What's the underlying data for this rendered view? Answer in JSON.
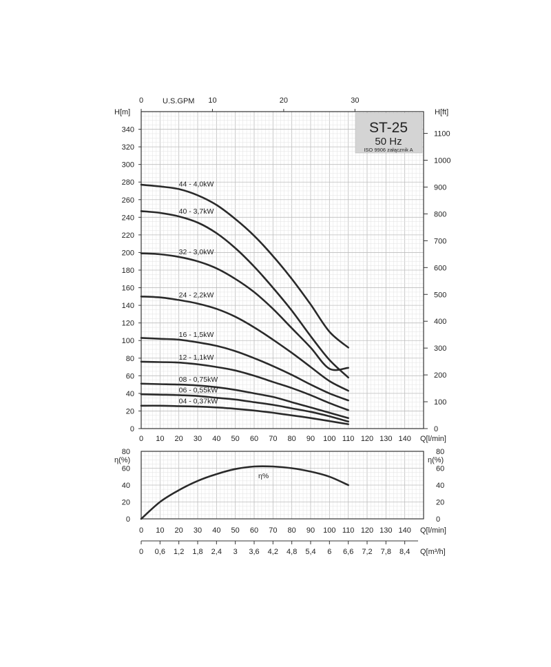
{
  "chart_data": [
    {
      "type": "line",
      "title": "ST-25",
      "subtitle": "50 Hz",
      "note": "ISO 9906 załącznik A",
      "ylabel": "H[m]",
      "ylabel_right": "H[ft]",
      "xlabel": "Q[l/min]",
      "xlabel_top": "U.S.GPM",
      "xlim": [
        0,
        150
      ],
      "ylim": [
        0,
        360
      ],
      "y_ticks": [
        "0",
        "20",
        "40",
        "60",
        "80",
        "100",
        "120",
        "140",
        "160",
        "180",
        "200",
        "220",
        "240",
        "260",
        "280",
        "300",
        "320",
        "340"
      ],
      "y_right_ticks": [
        "0",
        "100",
        "200",
        "300",
        "400",
        "500",
        "600",
        "700",
        "800",
        "900",
        "1000",
        "1100"
      ],
      "x_ticks": [
        "0",
        "10",
        "20",
        "30",
        "40",
        "50",
        "60",
        "70",
        "80",
        "90",
        "100",
        "110",
        "120",
        "130",
        "140"
      ],
      "x_top_ticks": [
        "0",
        "10",
        "20",
        "30"
      ],
      "grid": true,
      "series": [
        {
          "name": "44 - 4,0kW",
          "x": [
            0,
            10,
            20,
            30,
            40,
            50,
            60,
            70,
            80,
            90,
            100,
            110
          ],
          "y": [
            277,
            275,
            272,
            265,
            254,
            238,
            219,
            196,
            170,
            141,
            110,
            92
          ]
        },
        {
          "name": "40 - 3,7kW",
          "x": [
            0,
            10,
            20,
            30,
            40,
            50,
            60,
            70,
            80,
            90,
            100,
            110
          ],
          "y": [
            247,
            245,
            241,
            234,
            222,
            205,
            184,
            160,
            134,
            105,
            78,
            58
          ]
        },
        {
          "name": "32 - 3,0kW",
          "x": [
            0,
            10,
            20,
            30,
            40,
            50,
            60,
            70,
            80,
            90,
            100,
            110
          ],
          "y": [
            199,
            198,
            195,
            190,
            182,
            170,
            155,
            136,
            114,
            92,
            68,
            69
          ]
        },
        {
          "name": "24 - 2,2kW",
          "x": [
            0,
            10,
            20,
            30,
            40,
            50,
            60,
            70,
            80,
            90,
            100,
            110
          ],
          "y": [
            150,
            149,
            146,
            142,
            136,
            127,
            115,
            101,
            86,
            70,
            54,
            43
          ]
        },
        {
          "name": "16 - 1,5kW",
          "x": [
            0,
            10,
            20,
            30,
            40,
            50,
            60,
            70,
            80,
            90,
            100,
            110
          ],
          "y": [
            103,
            102,
            101,
            98,
            94,
            88,
            80,
            71,
            61,
            50,
            40,
            32
          ]
        },
        {
          "name": "12 - 1,1kW",
          "x": [
            0,
            10,
            20,
            30,
            40,
            50,
            60,
            70,
            80,
            90,
            100,
            110
          ],
          "y": [
            76,
            75.5,
            75,
            73,
            70,
            66,
            60,
            53,
            46,
            38,
            29,
            21
          ]
        },
        {
          "name": "08 - 0,75kW",
          "x": [
            0,
            10,
            20,
            30,
            40,
            50,
            60,
            70,
            80,
            90,
            100,
            110
          ],
          "y": [
            51,
            50.5,
            50,
            49,
            47,
            44,
            40,
            36,
            30,
            24,
            18,
            12
          ]
        },
        {
          "name": "06 - 0,55kW",
          "x": [
            0,
            10,
            20,
            30,
            40,
            50,
            60,
            70,
            80,
            90,
            100,
            110
          ],
          "y": [
            39,
            38.5,
            38,
            37,
            35,
            33,
            30,
            27,
            23,
            19,
            14,
            8
          ]
        },
        {
          "name": "04 - 0,37kW",
          "x": [
            0,
            10,
            20,
            30,
            40,
            50,
            60,
            70,
            80,
            90,
            100,
            110
          ],
          "y": [
            26,
            26,
            25.5,
            25,
            24,
            22.5,
            20.5,
            18,
            15,
            12,
            8.5,
            5
          ]
        }
      ]
    },
    {
      "type": "line",
      "ylabel": "η(%)",
      "ylabel_right": "η(%)",
      "xlabel": "Q[l/min]",
      "xlabel_bottom": "Q[m³/h]",
      "xlim": [
        0,
        150
      ],
      "ylim": [
        0,
        80
      ],
      "y_ticks": [
        "0",
        "20",
        "40",
        "60",
        "80"
      ],
      "x_ticks": [
        "0",
        "10",
        "20",
        "30",
        "40",
        "50",
        "60",
        "70",
        "80",
        "90",
        "100",
        "110",
        "120",
        "130",
        "140"
      ],
      "x_bottom_ticks": [
        "0",
        "0,6",
        "1,2",
        "1,8",
        "2,4",
        "3",
        "3,6",
        "4,2",
        "4,8",
        "5,4",
        "6",
        "6,6",
        "7,2",
        "7,8",
        "8,4"
      ],
      "grid": true,
      "series": [
        {
          "name": "η%",
          "x": [
            0,
            10,
            20,
            30,
            40,
            50,
            60,
            70,
            80,
            90,
            100,
            110
          ],
          "y": [
            0,
            20,
            34,
            45,
            53,
            59,
            62,
            62,
            60,
            56,
            50,
            40
          ]
        }
      ]
    }
  ]
}
